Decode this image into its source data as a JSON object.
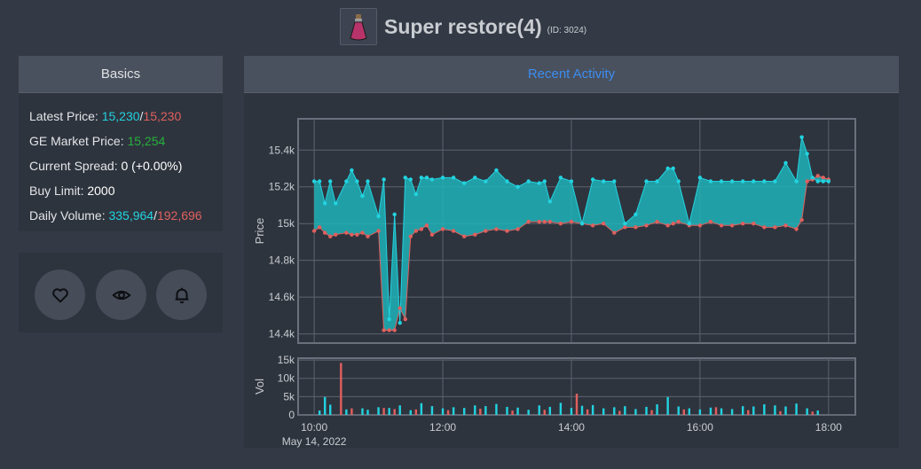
{
  "header": {
    "title": "Super restore(4)",
    "id_label": "(ID: 3024)"
  },
  "basics": {
    "heading": "Basics",
    "latest_price_label": "Latest Price: ",
    "latest_buy": "15,230",
    "latest_sep": "/",
    "latest_sell": "15,230",
    "ge_price_label": "GE Market Price: ",
    "ge_price": "15,254",
    "spread_label": "Current Spread: ",
    "spread": "0 (+0.00%)",
    "limit_label": "Buy Limit: ",
    "limit": "2000",
    "volume_label": "Daily Volume: ",
    "volume_buy": "335,964",
    "volume_sep": "/",
    "volume_sell": "192,696"
  },
  "actions": [
    {
      "icon": "heart-icon"
    },
    {
      "icon": "eye-icon"
    },
    {
      "icon": "bell-icon"
    }
  ],
  "activity": {
    "heading": "Recent Activity"
  },
  "colors": {
    "buy": "#22d3e0",
    "sell": "#e0605e",
    "fill": "#1fb3b8",
    "accent": "#3b8df0",
    "green": "#26b13b"
  },
  "chart_data": {
    "type": "line",
    "price_panel": {
      "ylabel": "Price",
      "ylim": [
        14350,
        15570
      ],
      "yticks": [
        14400,
        14600,
        14800,
        15000,
        15200,
        15400
      ],
      "ytick_labels": [
        "14.4k",
        "14.6k",
        "14.8k",
        "15k",
        "15.2k",
        "15.4k"
      ],
      "series": [
        {
          "name": "high",
          "x": [
            "10:00",
            "10:05",
            "10:10",
            "10:15",
            "10:20",
            "10:30",
            "10:35",
            "10:40",
            "10:45",
            "10:50",
            "11:00",
            "11:05",
            "11:10",
            "11:15",
            "11:20",
            "11:25",
            "11:30",
            "11:35",
            "11:40",
            "11:45",
            "11:50",
            "12:00",
            "12:10",
            "12:20",
            "12:30",
            "12:40",
            "12:50",
            "13:00",
            "13:10",
            "13:20",
            "13:30",
            "13:35",
            "13:40",
            "13:50",
            "14:00",
            "14:10",
            "14:20",
            "14:30",
            "14:40",
            "14:50",
            "15:00",
            "15:10",
            "15:20",
            "15:30",
            "15:35",
            "15:40",
            "15:50",
            "16:00",
            "16:10",
            "16:20",
            "16:30",
            "16:40",
            "16:50",
            "17:00",
            "17:10",
            "17:20",
            "17:30",
            "17:35",
            "17:40",
            "17:45",
            "17:50",
            "17:55",
            "18:00"
          ],
          "y": [
            15230,
            15230,
            15110,
            15230,
            15110,
            15230,
            15290,
            15230,
            15150,
            15230,
            15040,
            15240,
            14480,
            15050,
            14460,
            15250,
            15240,
            15160,
            15250,
            15250,
            15240,
            15250,
            15250,
            15220,
            15250,
            15230,
            15290,
            15230,
            15200,
            15230,
            15220,
            15230,
            15120,
            15250,
            15230,
            15000,
            15240,
            15230,
            15230,
            15000,
            15050,
            15230,
            15230,
            15300,
            15300,
            15230,
            15000,
            15250,
            15230,
            15230,
            15230,
            15230,
            15230,
            15230,
            15230,
            15330,
            15230,
            15470,
            15380,
            15250,
            15230,
            15230,
            15230
          ]
        },
        {
          "name": "low",
          "x": [
            "10:00",
            "10:05",
            "10:10",
            "10:15",
            "10:20",
            "10:30",
            "10:35",
            "10:40",
            "10:45",
            "10:50",
            "11:00",
            "11:05",
            "11:10",
            "11:15",
            "11:20",
            "11:25",
            "11:30",
            "11:35",
            "11:40",
            "11:45",
            "11:50",
            "12:00",
            "12:10",
            "12:20",
            "12:30",
            "12:40",
            "12:50",
            "13:00",
            "13:10",
            "13:20",
            "13:30",
            "13:35",
            "13:40",
            "13:50",
            "14:00",
            "14:10",
            "14:20",
            "14:30",
            "14:40",
            "14:50",
            "15:00",
            "15:10",
            "15:20",
            "15:30",
            "15:35",
            "15:40",
            "15:50",
            "16:00",
            "16:10",
            "16:20",
            "16:30",
            "16:40",
            "16:50",
            "17:00",
            "17:10",
            "17:20",
            "17:30",
            "17:35",
            "17:40",
            "17:45",
            "17:50",
            "17:55",
            "18:00"
          ],
          "y": [
            14960,
            14980,
            14950,
            14930,
            14940,
            14950,
            14940,
            14940,
            14950,
            14930,
            14960,
            14420,
            14420,
            14420,
            14540,
            14480,
            14930,
            14960,
            14970,
            14990,
            14940,
            14970,
            14960,
            14930,
            14940,
            14960,
            14970,
            14960,
            14970,
            15010,
            15010,
            15010,
            15010,
            15000,
            15010,
            15000,
            14990,
            15000,
            14950,
            14980,
            14980,
            14990,
            15010,
            14990,
            15000,
            15010,
            14990,
            14990,
            15010,
            14990,
            14990,
            15000,
            15000,
            14980,
            14980,
            14990,
            14970,
            15020,
            15230,
            15240,
            15260,
            15250,
            15240
          ]
        }
      ]
    },
    "volume_panel": {
      "ylabel": "Vol",
      "ylim": [
        0,
        15500
      ],
      "yticks": [
        0,
        5000,
        10000,
        15000
      ],
      "ytick_labels": [
        "0",
        "5k",
        "10k",
        "15k"
      ],
      "series": [
        {
          "name": "buy",
          "x": [
            "10:05",
            "10:10",
            "10:15",
            "10:30",
            "10:45",
            "10:50",
            "11:00",
            "11:10",
            "11:20",
            "11:30",
            "11:40",
            "11:50",
            "12:00",
            "12:10",
            "12:20",
            "12:30",
            "12:40",
            "12:50",
            "13:00",
            "13:10",
            "13:20",
            "13:30",
            "13:40",
            "13:50",
            "14:00",
            "14:10",
            "14:20",
            "14:30",
            "14:40",
            "14:50",
            "15:00",
            "15:10",
            "15:20",
            "15:30",
            "15:40",
            "15:50",
            "16:00",
            "16:10",
            "16:20",
            "16:30",
            "16:40",
            "16:50",
            "17:00",
            "17:10",
            "17:20",
            "17:30",
            "17:40",
            "17:50"
          ],
          "y": [
            1200,
            4900,
            2800,
            1500,
            1800,
            1400,
            2100,
            1900,
            2600,
            1300,
            3200,
            2400,
            1800,
            2100,
            1900,
            2600,
            2400,
            3000,
            2200,
            2000,
            1400,
            2600,
            2200,
            3300,
            1900,
            2500,
            2700,
            1800,
            2100,
            2400,
            1600,
            2200,
            2900,
            4900,
            2300,
            1800,
            1500,
            2000,
            1800,
            1600,
            2400,
            2300,
            2900,
            2600,
            2300,
            3100,
            1800,
            1200
          ]
        },
        {
          "name": "sell",
          "x": [
            "10:25",
            "10:35",
            "11:05",
            "11:15",
            "11:35",
            "12:05",
            "12:35",
            "13:05",
            "13:35",
            "14:05",
            "14:15",
            "14:45",
            "15:15",
            "15:45",
            "16:15",
            "16:45",
            "17:15",
            "17:45"
          ],
          "y": [
            14200,
            1800,
            1900,
            1600,
            1500,
            1300,
            1700,
            1200,
            1400,
            5800,
            1500,
            1100,
            1300,
            1500,
            2100,
            1300,
            1000,
            900
          ]
        }
      ]
    },
    "x_ticks": [
      "10:00",
      "12:00",
      "14:00",
      "16:00",
      "18:00"
    ],
    "x_start": "09:45",
    "x_end": "18:25",
    "date_label": "May 14, 2022"
  }
}
